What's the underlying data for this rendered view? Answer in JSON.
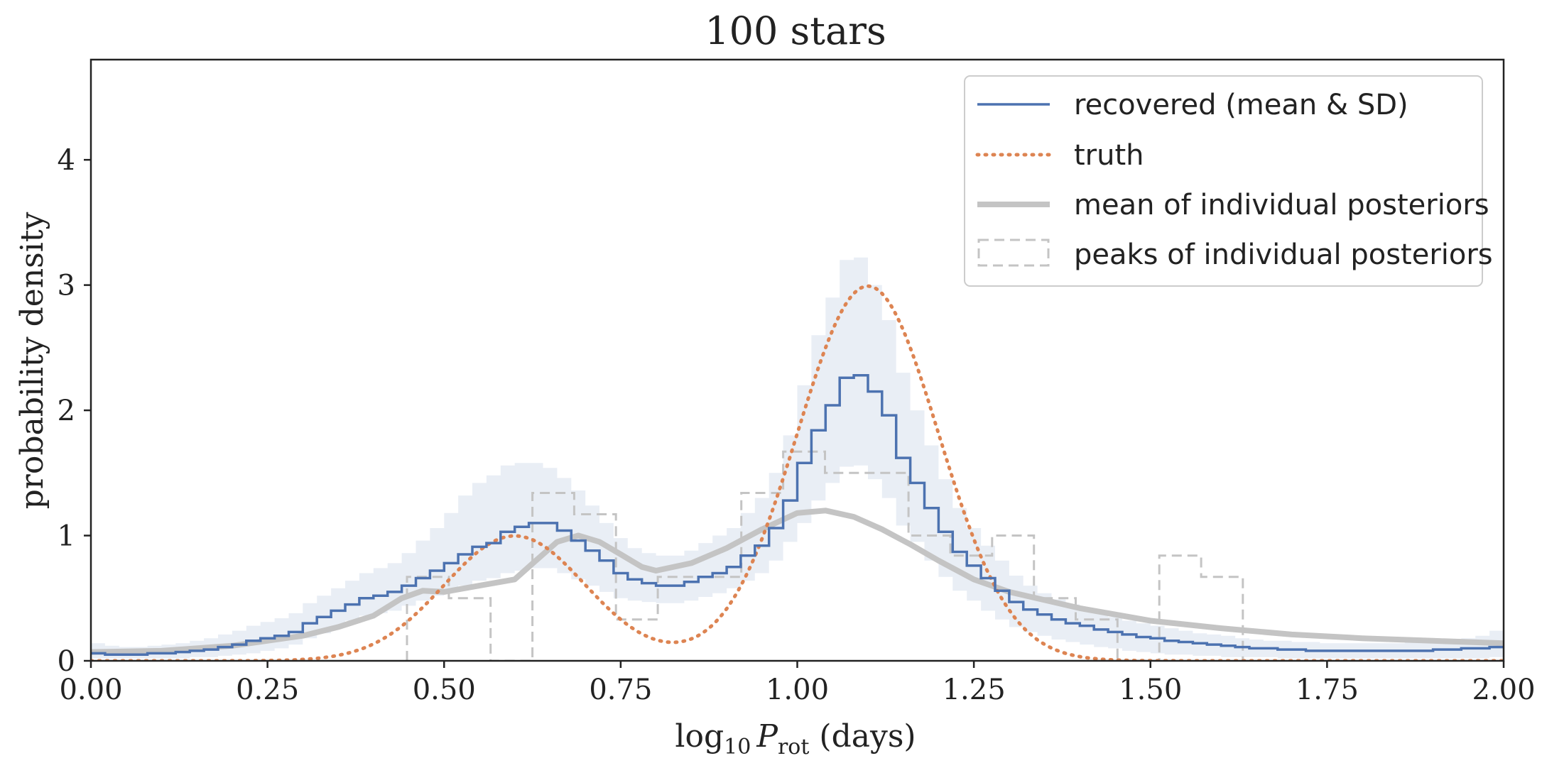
{
  "chart_data": {
    "type": "line",
    "title": "100 stars",
    "xlabel": {
      "prefix": "log",
      "prefix_sub": "10",
      "var": "P",
      "var_sub": "rot",
      "suffix": " (days)"
    },
    "ylabel": "probability density",
    "xlim": [
      0,
      2
    ],
    "ylim": [
      0,
      4.8
    ],
    "x_ticks": [
      0,
      0.25,
      0.5,
      0.75,
      1.0,
      1.25,
      1.5,
      1.75,
      2.0
    ],
    "x_tick_labels": [
      "0.00",
      "0.25",
      "0.50",
      "0.75",
      "1.00",
      "1.25",
      "1.50",
      "1.75",
      "2.00"
    ],
    "y_ticks": [
      0,
      1,
      2,
      3,
      4
    ],
    "y_tick_labels": [
      "0",
      "1",
      "2",
      "3",
      "4"
    ],
    "legend_position": "top-right",
    "series": [
      {
        "name": "recovered (mean & SD)",
        "style": "step",
        "color": "#4c72b0",
        "bin_width": 0.02,
        "values": [
          0.06,
          0.05,
          0.05,
          0.05,
          0.06,
          0.06,
          0.07,
          0.08,
          0.09,
          0.11,
          0.13,
          0.16,
          0.18,
          0.2,
          0.23,
          0.3,
          0.35,
          0.4,
          0.45,
          0.5,
          0.52,
          0.55,
          0.6,
          0.66,
          0.72,
          0.78,
          0.85,
          0.91,
          0.94,
          1.03,
          1.07,
          1.1,
          1.1,
          1.04,
          0.96,
          0.88,
          0.8,
          0.7,
          0.65,
          0.62,
          0.6,
          0.6,
          0.63,
          0.67,
          0.7,
          0.75,
          0.84,
          0.92,
          1.06,
          1.28,
          1.58,
          1.84,
          2.04,
          2.26,
          2.28,
          2.15,
          1.96,
          1.62,
          1.42,
          1.22,
          1.03,
          0.87,
          0.76,
          0.66,
          0.56,
          0.47,
          0.41,
          0.37,
          0.33,
          0.3,
          0.28,
          0.25,
          0.23,
          0.21,
          0.19,
          0.18,
          0.16,
          0.15,
          0.14,
          0.13,
          0.12,
          0.11,
          0.1,
          0.1,
          0.09,
          0.09,
          0.08,
          0.08,
          0.08,
          0.08,
          0.08,
          0.08,
          0.08,
          0.08,
          0.08,
          0.09,
          0.09,
          0.1,
          0.1,
          0.11
        ],
        "band_lower": [
          0.02,
          0.02,
          0.02,
          0.02,
          0.02,
          0.02,
          0.02,
          0.03,
          0.03,
          0.04,
          0.05,
          0.06,
          0.08,
          0.1,
          0.13,
          0.18,
          0.22,
          0.27,
          0.32,
          0.36,
          0.38,
          0.4,
          0.44,
          0.48,
          0.52,
          0.56,
          0.6,
          0.64,
          0.66,
          0.7,
          0.72,
          0.74,
          0.74,
          0.7,
          0.65,
          0.6,
          0.55,
          0.5,
          0.48,
          0.47,
          0.46,
          0.46,
          0.48,
          0.51,
          0.54,
          0.58,
          0.64,
          0.7,
          0.8,
          0.95,
          1.1,
          1.28,
          1.42,
          1.55,
          1.56,
          1.45,
          1.3,
          1.08,
          0.95,
          0.8,
          0.67,
          0.56,
          0.48,
          0.4,
          0.33,
          0.27,
          0.23,
          0.2,
          0.17,
          0.15,
          0.13,
          0.11,
          0.1,
          0.08,
          0.07,
          0.06,
          0.05,
          0.05,
          0.04,
          0.04,
          0.03,
          0.03,
          0.03,
          0.03,
          0.02,
          0.02,
          0.02,
          0.02,
          0.02,
          0.02,
          0.02,
          0.02,
          0.02,
          0.02,
          0.02,
          0.02,
          0.02,
          0.02,
          0.02,
          0.03
        ],
        "band_upper": [
          0.14,
          0.12,
          0.11,
          0.11,
          0.12,
          0.13,
          0.14,
          0.16,
          0.18,
          0.21,
          0.24,
          0.28,
          0.31,
          0.34,
          0.38,
          0.46,
          0.52,
          0.58,
          0.64,
          0.7,
          0.74,
          0.78,
          0.86,
          0.96,
          1.06,
          1.18,
          1.32,
          1.42,
          1.48,
          1.56,
          1.58,
          1.58,
          1.54,
          1.46,
          1.36,
          1.24,
          1.1,
          0.98,
          0.9,
          0.86,
          0.84,
          0.84,
          0.88,
          0.94,
          1.0,
          1.06,
          1.18,
          1.3,
          1.5,
          1.8,
          2.2,
          2.6,
          2.9,
          3.2,
          3.22,
          3.0,
          2.72,
          2.3,
          2.0,
          1.72,
          1.45,
          1.22,
          1.06,
          0.92,
          0.8,
          0.68,
          0.6,
          0.54,
          0.49,
          0.45,
          0.42,
          0.38,
          0.35,
          0.32,
          0.3,
          0.28,
          0.26,
          0.24,
          0.22,
          0.21,
          0.2,
          0.18,
          0.17,
          0.16,
          0.16,
          0.15,
          0.15,
          0.14,
          0.14,
          0.14,
          0.14,
          0.14,
          0.14,
          0.15,
          0.15,
          0.16,
          0.17,
          0.18,
          0.2,
          0.24
        ]
      },
      {
        "name": "truth",
        "style": "dotted",
        "color": "#dd8452",
        "components": [
          {
            "weight": 0.25,
            "mu": 0.6,
            "sigma": 0.1
          },
          {
            "weight": 0.75,
            "mu": 1.1,
            "sigma": 0.1
          }
        ]
      },
      {
        "name": "mean of individual posteriors",
        "style": "solid-thick",
        "color": "#c4c4c4",
        "x": [
          0,
          0.1,
          0.2,
          0.3,
          0.35,
          0.4,
          0.44,
          0.47,
          0.5,
          0.55,
          0.6,
          0.63,
          0.66,
          0.69,
          0.72,
          0.75,
          0.78,
          0.8,
          0.85,
          0.9,
          0.95,
          1.0,
          1.04,
          1.08,
          1.12,
          1.16,
          1.2,
          1.25,
          1.3,
          1.4,
          1.5,
          1.6,
          1.7,
          1.8,
          1.9,
          2.0
        ],
        "y": [
          0.07,
          0.08,
          0.12,
          0.2,
          0.27,
          0.36,
          0.5,
          0.56,
          0.55,
          0.6,
          0.65,
          0.8,
          0.95,
          1.0,
          0.95,
          0.85,
          0.75,
          0.72,
          0.78,
          0.9,
          1.05,
          1.18,
          1.2,
          1.15,
          1.05,
          0.93,
          0.8,
          0.65,
          0.55,
          0.42,
          0.32,
          0.26,
          0.21,
          0.18,
          0.16,
          0.14
        ]
      },
      {
        "name": "peaks of individual posteriors",
        "style": "dashed-step",
        "color": "#c4c4c4",
        "edges": [
          0.4475,
          0.5067,
          0.5658,
          0.625,
          0.6842,
          0.7433,
          0.8025,
          0.8617,
          0.9208,
          0.98,
          1.0392,
          1.0983,
          1.1575,
          1.2167,
          1.2758,
          1.335,
          1.3942,
          1.4533,
          1.5125,
          1.5717,
          1.6308
        ],
        "counts": [
          0.67,
          0.5,
          0.0,
          1.34,
          1.17,
          0.33,
          0.67,
          0.67,
          1.34,
          1.67,
          1.5,
          1.5,
          1.0,
          0.84,
          1.0,
          0.5,
          0.33,
          0.0,
          0.84,
          0.67
        ]
      }
    ]
  }
}
